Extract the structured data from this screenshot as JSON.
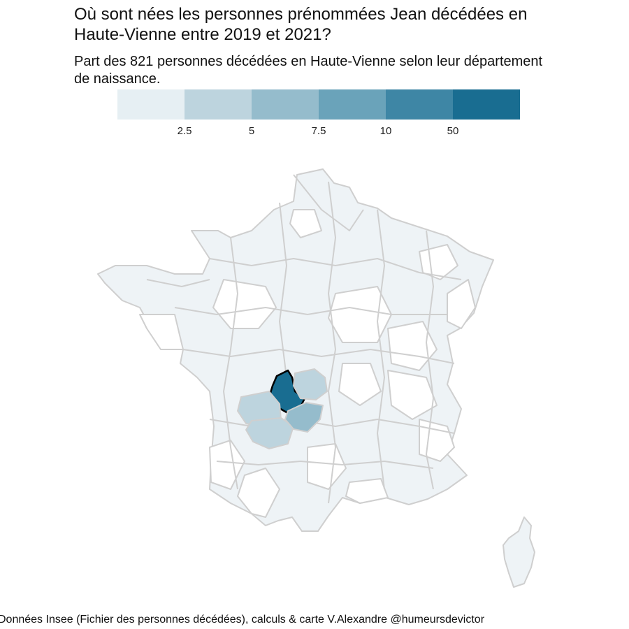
{
  "chart_data": {
    "type": "choropleth",
    "title_lines": [
      "Où sont nées les personnes prénommées Jean décédées en",
      "Haute-Vienne entre 2019 et 2021?"
    ],
    "subtitle_lines": [
      "Part des 821 personnes décédées en Haute-Vienne selon leur département",
      "de naissance."
    ],
    "legend": {
      "breaks": [
        "2.5",
        "5",
        "7.5",
        "10",
        "50"
      ],
      "colors": [
        "#e6eff3",
        "#bdd4de",
        "#95bccc",
        "#6aa3ba",
        "#3e86a5",
        "#196d91"
      ]
    },
    "highlight_department": "Haute-Vienne",
    "regions": [
      {
        "name": "Haute-Vienne",
        "class": 5
      },
      {
        "name": "Creuse",
        "class": 1
      },
      {
        "name": "Charente",
        "class": 1
      },
      {
        "name": "Dordogne",
        "class": 1
      },
      {
        "name": "Corrèze",
        "class": 2
      }
    ],
    "caption": "Données Insee (Fichier des personnes décédées), calculs & carte V.Alexandre @humeursdevictor",
    "colors": {
      "stroke": "#cfcfcf",
      "empty": "#ffffff",
      "highlight_stroke": "#000000"
    }
  }
}
